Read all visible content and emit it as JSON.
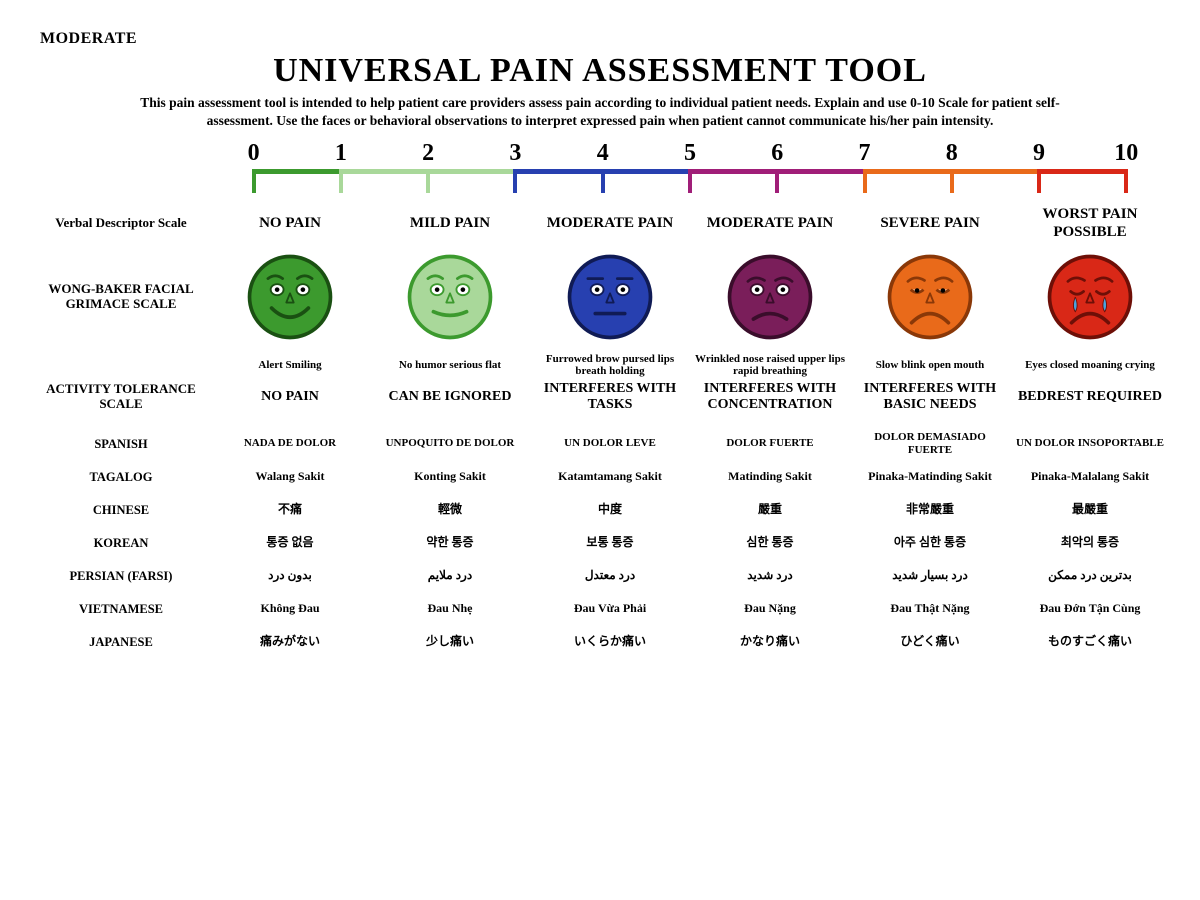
{
  "corner_label": "MODERATE",
  "title": "UNIVERSAL PAIN ASSESSMENT TOOL",
  "description": "This pain assessment tool is intended to help patient care providers assess pain according to individual patient needs. Explain and use 0-10 Scale for patient self-assessment. Use the faces or behavioral observations to interpret expressed pain when patient cannot communicate his/her pain intensity.",
  "scale": {
    "numbers": [
      "0",
      "1",
      "2",
      "3",
      "4",
      "5",
      "6",
      "7",
      "8",
      "9",
      "10"
    ],
    "segments": [
      {
        "start": 0,
        "end": 1,
        "color": "#3c9a2e"
      },
      {
        "start": 1,
        "end": 3,
        "color": "#a9d89a"
      },
      {
        "start": 3,
        "end": 5,
        "color": "#2740b0"
      },
      {
        "start": 5,
        "end": 7,
        "color": "#a01e78"
      },
      {
        "start": 7,
        "end": 9,
        "color": "#e96a1a"
      },
      {
        "start": 9,
        "end": 10,
        "color": "#d92817"
      }
    ],
    "tick_color_map": [
      "#3c9a2e",
      "#a9d89a",
      "#a9d89a",
      "#2740b0",
      "#2740b0",
      "#a01e78",
      "#a01e78",
      "#e96a1a",
      "#e96a1a",
      "#d92817",
      "#d92817"
    ]
  },
  "row_labels": {
    "verbal": "Verbal Descriptor Scale",
    "faces": "WONG-BAKER FACIAL GRIMACE SCALE",
    "activity": "ACTIVITY TOLERANCE SCALE",
    "spanish": "SPANISH",
    "tagalog": "TAGALOG",
    "chinese": "CHINESE",
    "korean": "KOREAN",
    "persian": "PERSIAN (FARSI)",
    "vietnamese": "VIETNAMESE",
    "japanese": "JAPANESE"
  },
  "verbal": [
    "NO PAIN",
    "MILD PAIN",
    "MODERATE PAIN",
    "MODERATE PAIN",
    "SEVERE PAIN",
    "WORST PAIN POSSIBLE"
  ],
  "faces": [
    {
      "fill": "#3c9a2e",
      "stroke": "#1a5012",
      "mouth": "smile",
      "brow": "up",
      "eyes": "open",
      "tears": false
    },
    {
      "fill": "#a9d89a",
      "stroke": "#3c9a2e",
      "mouth": "slight",
      "brow": "up",
      "eyes": "open",
      "tears": false
    },
    {
      "fill": "#2740b0",
      "stroke": "#101b55",
      "mouth": "flat",
      "brow": "flat",
      "eyes": "open",
      "tears": false
    },
    {
      "fill": "#7a1e5a",
      "stroke": "#3a0d2b",
      "mouth": "frown",
      "brow": "worry",
      "eyes": "open",
      "tears": false
    },
    {
      "fill": "#e96a1a",
      "stroke": "#8a3808",
      "mouth": "sad",
      "brow": "worry",
      "eyes": "droop",
      "tears": false
    },
    {
      "fill": "#d92817",
      "stroke": "#6e0f07",
      "mouth": "sad",
      "brow": "worry",
      "eyes": "closed",
      "tears": true
    }
  ],
  "behaviors": [
    "Alert Smiling",
    "No humor serious flat",
    "Furrowed brow pursed lips breath holding",
    "Wrinkled nose raised upper lips rapid breathing",
    "Slow blink open mouth",
    "Eyes closed moaning crying"
  ],
  "tolerance": [
    "NO PAIN",
    "CAN BE IGNORED",
    "INTERFERES WITH TASKS",
    "INTERFERES WITH CONCENTRATION",
    "INTERFERES WITH BASIC NEEDS",
    "BEDREST REQUIRED"
  ],
  "languages": {
    "spanish": [
      "NADA DE DOLOR",
      "UNPOQUITO DE DOLOR",
      "UN DOLOR LEVE",
      "DOLOR FUERTE",
      "DOLOR DEMASIADO FUERTE",
      "UN DOLOR INSOPORTABLE"
    ],
    "tagalog": [
      "Walang Sakit",
      "Konting Sakit",
      "Katamtamang Sakit",
      "Matinding Sakit",
      "Pinaka-Matinding Sakit",
      "Pinaka-Malalang Sakit"
    ],
    "chinese": [
      "不痛",
      "輕微",
      "中度",
      "嚴重",
      "非常嚴重",
      "最嚴重"
    ],
    "korean": [
      "통증 없음",
      "약한 통증",
      "보통 통증",
      "심한 통증",
      "아주 심한 통증",
      "최악의 통증"
    ],
    "persian": [
      "بدون درد",
      "درد ملایم",
      "درد معتدل",
      "درد شدید",
      "درد بسیار شدید",
      "بدترین درد ممکن"
    ],
    "vietnamese": [
      "Không Đau",
      "Đau Nhẹ",
      "Đau Vừa Phải",
      "Đau Nặng",
      "Đau Thật Nặng",
      "Đau Đớn Tận Cùng"
    ],
    "japanese": [
      "痛みがない",
      "少し痛い",
      "いくらか痛い",
      "かなり痛い",
      "ひどく痛い",
      "ものすごく痛い"
    ]
  }
}
